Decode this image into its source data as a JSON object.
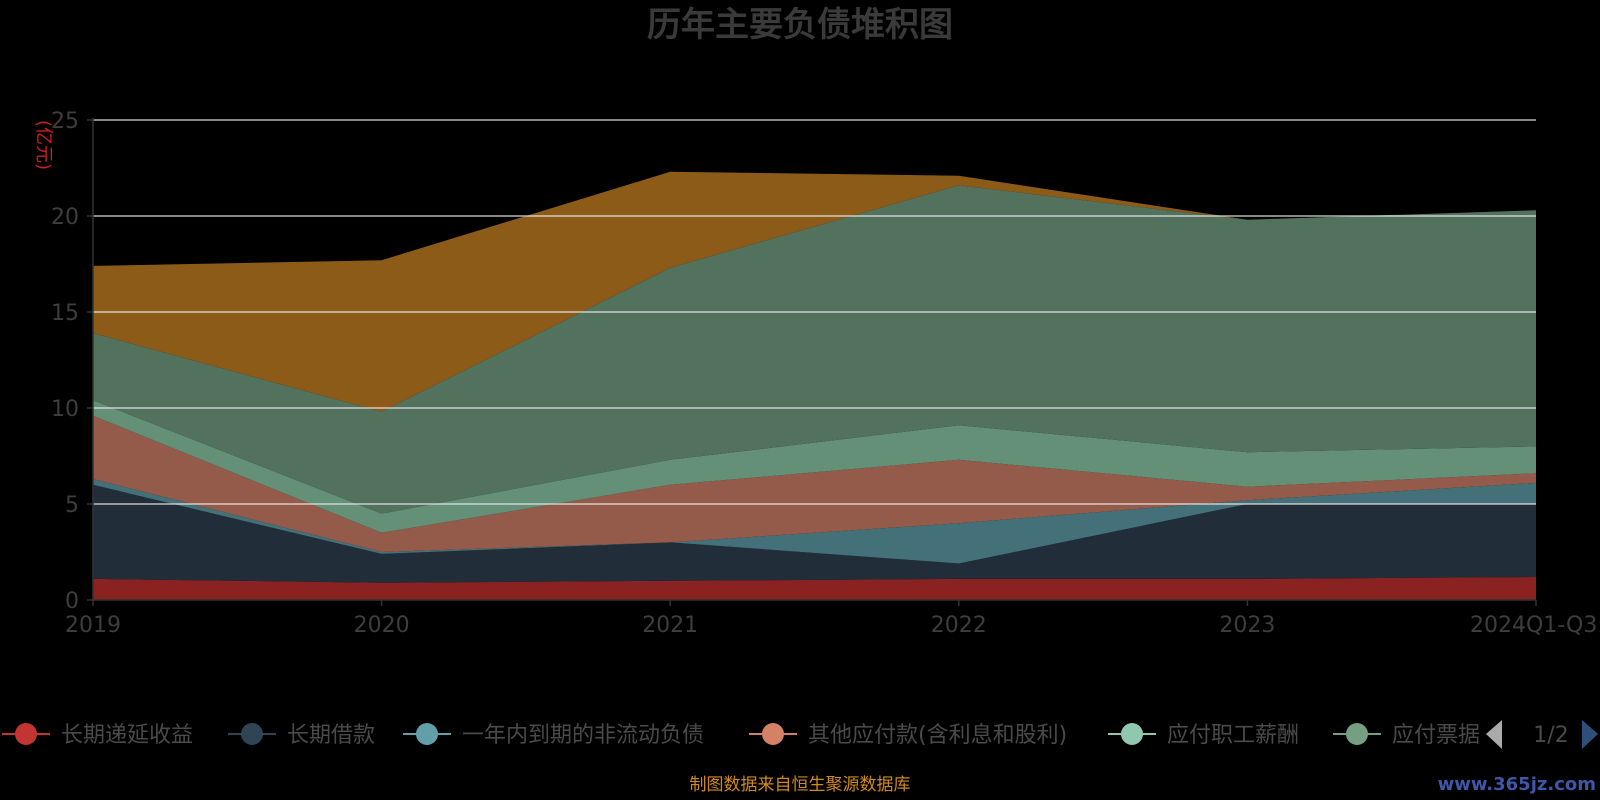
{
  "chart_data": {
    "type": "area",
    "title": "历年主要负债堆积图",
    "unit_label": "(亿元)",
    "categories": [
      "2019",
      "2020",
      "2021",
      "2022",
      "2023",
      "2024Q1-Q3"
    ],
    "ylim": [
      0,
      25
    ],
    "yticks": [
      0,
      5,
      10,
      15,
      20,
      25
    ],
    "stacked": true,
    "grid": true,
    "series": [
      {
        "name": "长期递延收益",
        "color": "#8b2222",
        "legend_color": "#c23531",
        "values": [
          1.1,
          0.9,
          1.0,
          1.1,
          1.1,
          1.2
        ]
      },
      {
        "name": "长期借款",
        "color": "#212e39",
        "legend_color": "#2f4554",
        "values": [
          4.9,
          1.5,
          2.0,
          0.8,
          3.9,
          3.8
        ]
      },
      {
        "name": "一年内到期的非流动负债",
        "color": "#44707a",
        "legend_color": "#61a0a8",
        "values": [
          0.3,
          0.1,
          0.0,
          2.1,
          0.2,
          1.1
        ]
      },
      {
        "name": "其他应付款(含利息和股利)",
        "color": "#955b4a",
        "legend_color": "#d48265",
        "values": [
          3.3,
          1.0,
          3.0,
          3.3,
          0.7,
          0.5
        ]
      },
      {
        "name": "应付职工薪酬",
        "color": "#649078",
        "legend_color": "#91c7ae",
        "values": [
          0.8,
          1.0,
          1.3,
          1.8,
          1.8,
          1.4
        ]
      },
      {
        "name": "应付票据",
        "color": "#52725e",
        "legend_color": "#749f83",
        "values": [
          3.5,
          5.3,
          10.0,
          12.5,
          12.1,
          12.3
        ]
      },
      {
        "name": "",
        "color": "#8d5b18",
        "legend_color": "#ca8622",
        "values": [
          3.5,
          7.9,
          5.0,
          0.5,
          0.0,
          0.0
        ]
      }
    ]
  },
  "legend": {
    "page": "1/2"
  },
  "footer": {
    "source": "制图数据来自恒生聚源数据库",
    "watermark": "www.365jz.com"
  }
}
